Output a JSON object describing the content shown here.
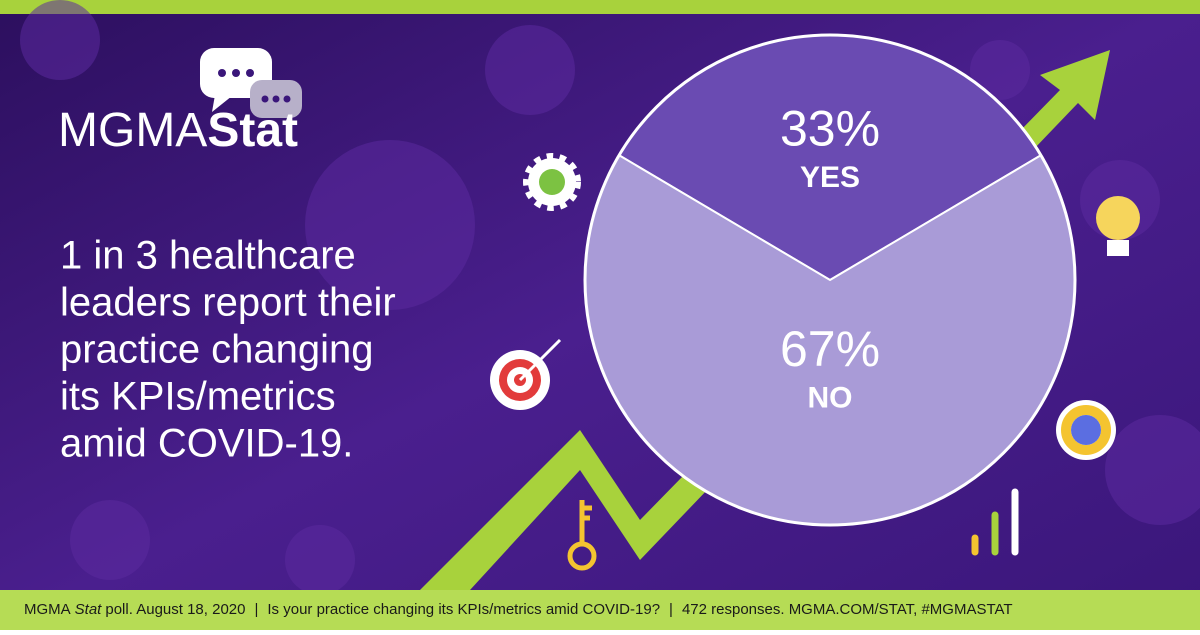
{
  "logo": {
    "light": "MGMA",
    "bold": "Stat"
  },
  "headline": [
    "1 in 3 healthcare",
    "leaders report their",
    "practice changing",
    "its KPIs/metrics",
    "amid COVID-19."
  ],
  "footer": {
    "prefix": "MGMA",
    "italic": "Stat",
    "date": "poll. August 18, 2020",
    "separator": "|",
    "question": "Is your practice changing its KPIs/metrics amid COVID-19?",
    "responses": "472 responses. MGMA.COM/STAT, #MGMASTAT"
  },
  "chart_data": {
    "type": "pie",
    "categories": [
      "YES",
      "NO"
    ],
    "values": [
      33,
      67
    ],
    "value_labels": [
      "33%",
      "67%"
    ],
    "colors": [
      "#6a4bb2",
      "#a99bd7"
    ]
  }
}
